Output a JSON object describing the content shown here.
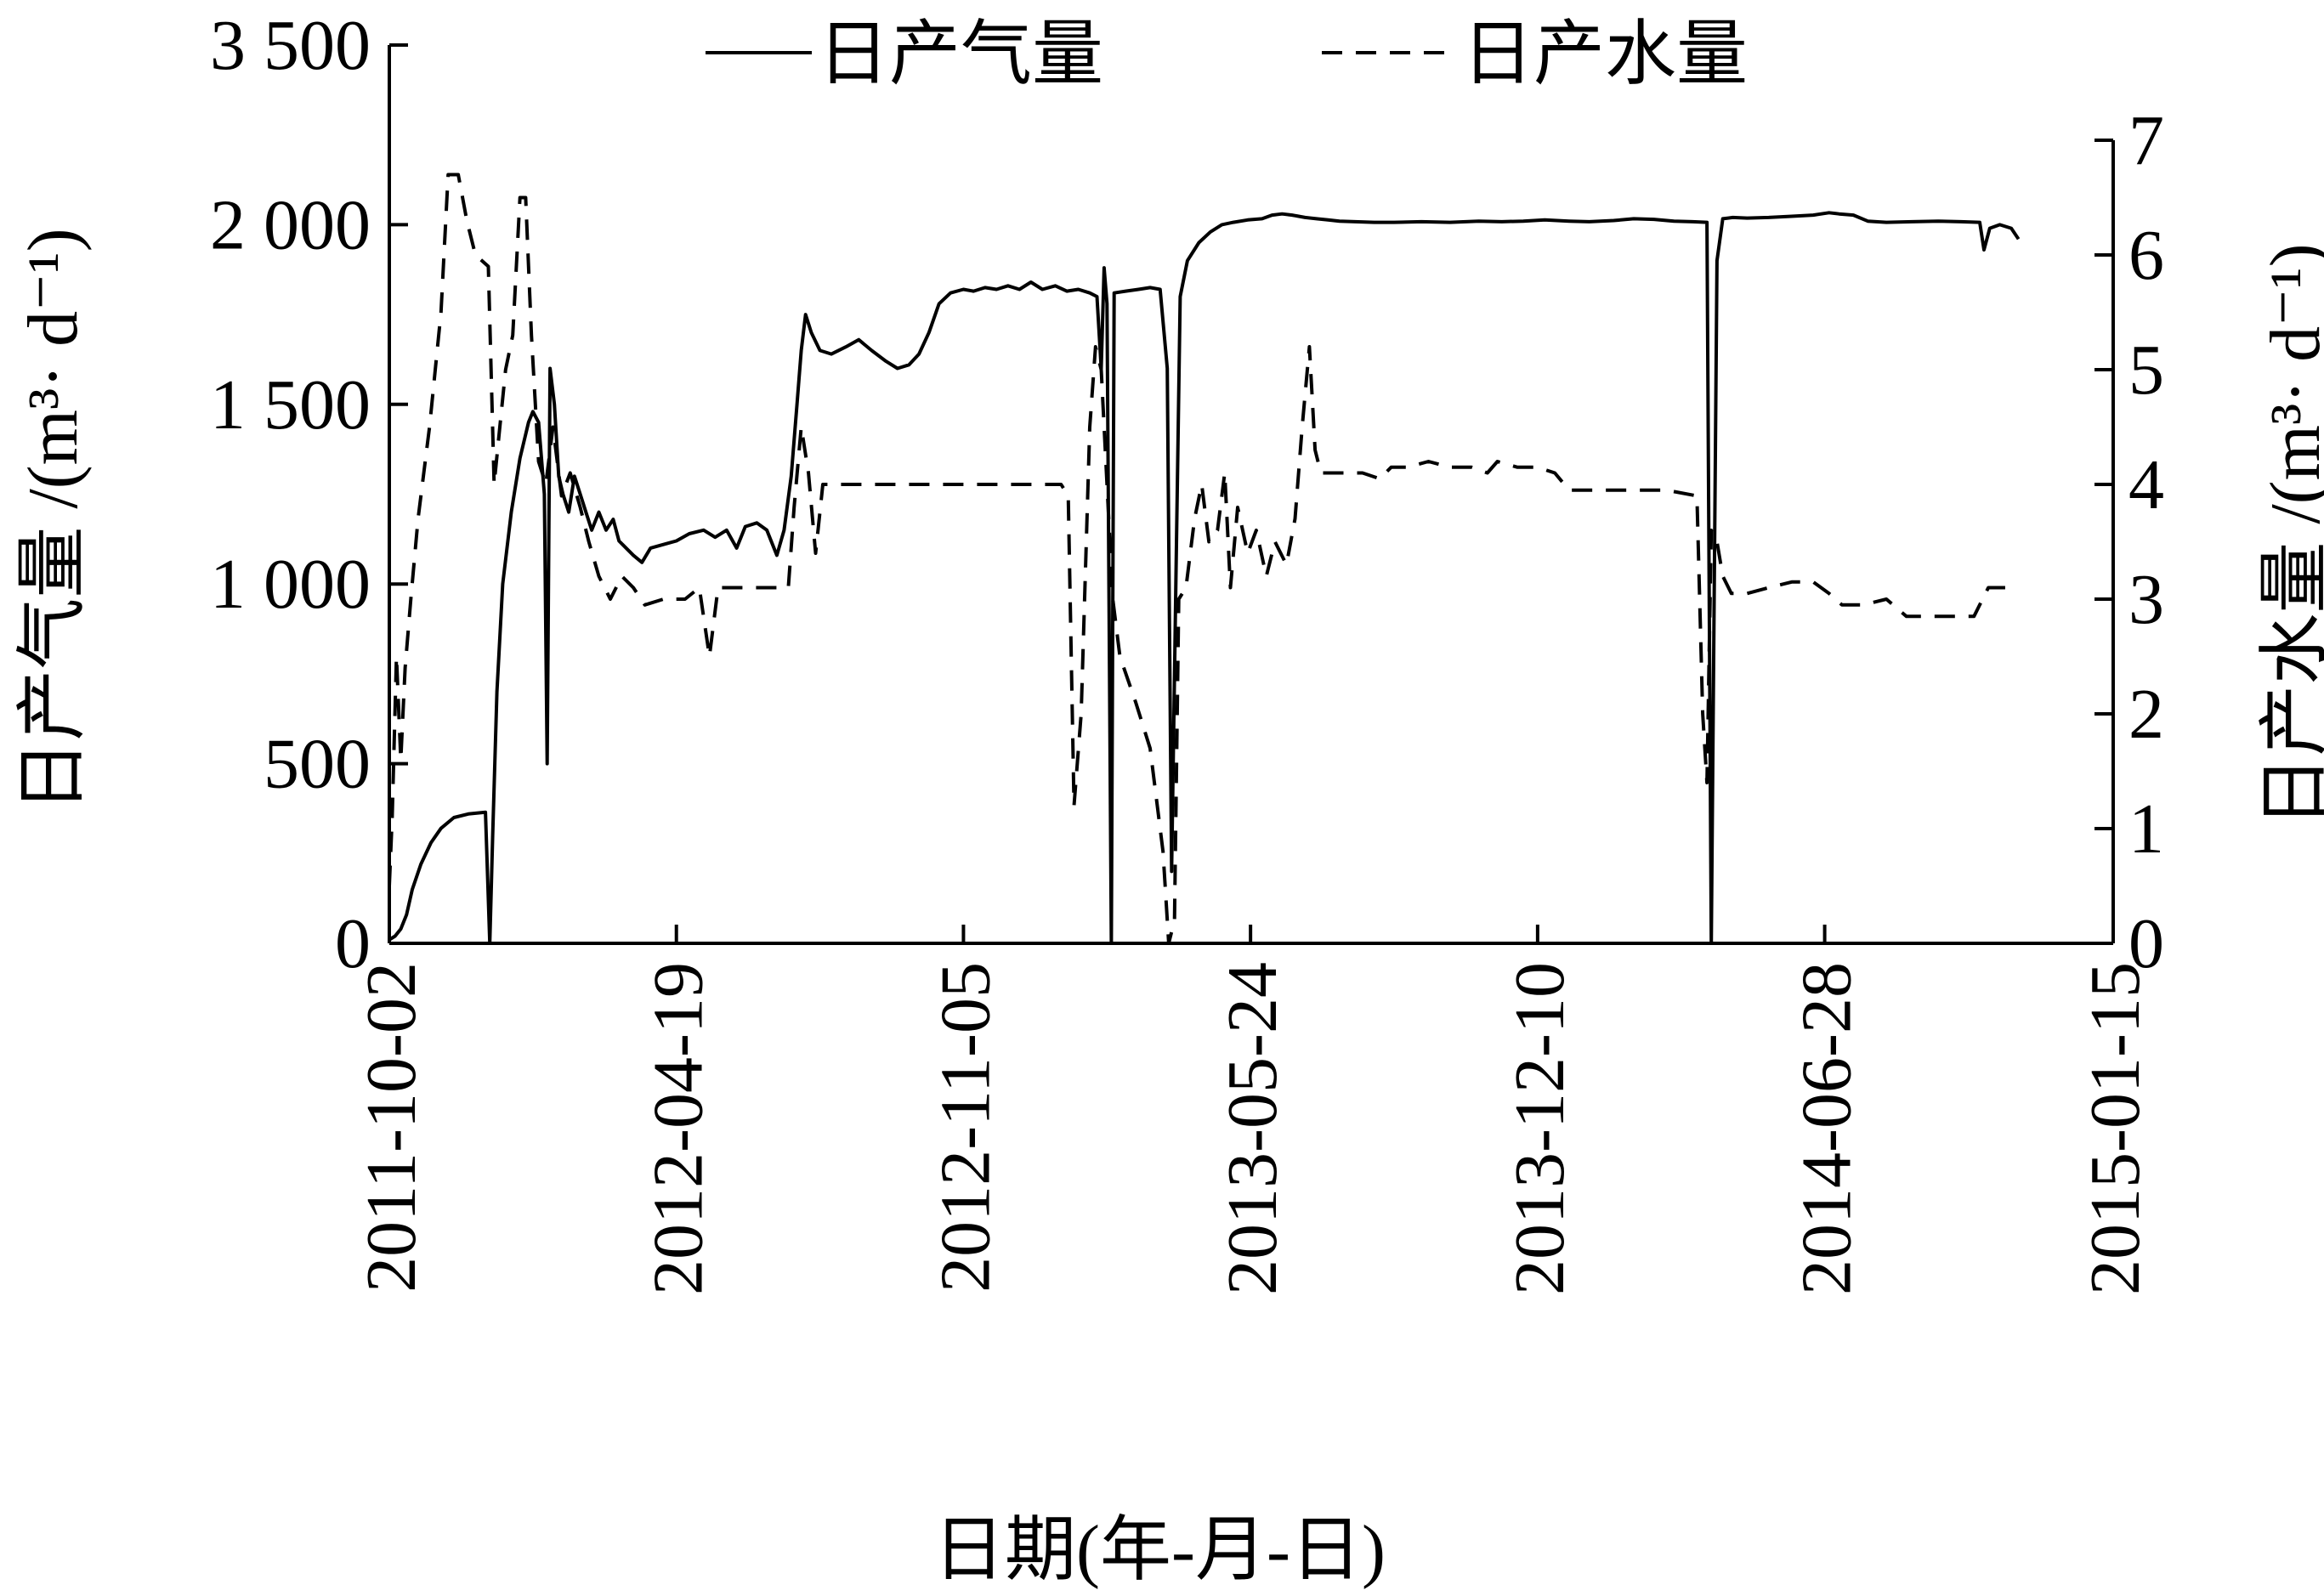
{
  "chart_data": {
    "type": "line",
    "xlabel": "日期(年-月-日)",
    "ylabel_left": "日产气量 /(m³· d⁻¹)",
    "ylabel_right": "日产水量 /(m³· d⁻¹)",
    "x_tick_labels": [
      "2011-10-02",
      "2012-04-19",
      "2012-11-05",
      "2013-05-24",
      "2013-12-10",
      "2014-06-28",
      "2015-01-15"
    ],
    "xlim": [
      "2011-10-02",
      "2015-01-15"
    ],
    "y_left_ticks": [
      "0",
      "500",
      "1 000",
      "1 500",
      "2 000",
      "3 500"
    ],
    "y_left_tick_values": [
      0,
      500,
      1000,
      1500,
      2000,
      3500
    ],
    "y_left_lim": [
      0,
      3500
    ],
    "y_left_axis_break": "between 2000 and 3500 the axis is compressed (the 3 500 tick sits where 2500 would be)",
    "y_right_ticks": [
      "0",
      "1",
      "2",
      "3",
      "4",
      "5",
      "6",
      "7"
    ],
    "y_right_lim": [
      0,
      7
    ],
    "legend": {
      "position": "top",
      "entries": [
        "日产气量",
        "日产水量"
      ]
    },
    "grid": false,
    "series": [
      {
        "name": "日产气量",
        "axis": "left",
        "style": "solid",
        "color": "#000000",
        "points": [
          [
            "2011-10-02",
            10
          ],
          [
            "2011-10-06",
            20
          ],
          [
            "2011-10-10",
            40
          ],
          [
            "2011-10-14",
            80
          ],
          [
            "2011-10-18",
            150
          ],
          [
            "2011-10-24",
            220
          ],
          [
            "2011-10-31",
            280
          ],
          [
            "2011-11-07",
            320
          ],
          [
            "2011-11-16",
            350
          ],
          [
            "2011-11-26",
            360
          ],
          [
            "2011-12-08",
            365
          ],
          [
            "2011-12-11",
            0
          ],
          [
            "2011-12-13",
            300
          ],
          [
            "2011-12-16",
            700
          ],
          [
            "2011-12-20",
            1000
          ],
          [
            "2011-12-26",
            1200
          ],
          [
            "2012-01-01",
            1350
          ],
          [
            "2012-01-07",
            1450
          ],
          [
            "2012-01-10",
            1480
          ],
          [
            "2012-01-14",
            1450
          ],
          [
            "2012-01-16",
            1350
          ],
          [
            "2012-01-18",
            1250
          ],
          [
            "2012-01-20",
            500
          ],
          [
            "2012-01-22",
            1600
          ],
          [
            "2012-01-25",
            1500
          ],
          [
            "2012-01-28",
            1300
          ],
          [
            "2012-01-31",
            1250
          ],
          [
            "2012-02-04",
            1200
          ],
          [
            "2012-02-08",
            1300
          ],
          [
            "2012-02-12",
            1250
          ],
          [
            "2012-02-16",
            1200
          ],
          [
            "2012-02-20",
            1150
          ],
          [
            "2012-02-25",
            1200
          ],
          [
            "2012-03-01",
            1150
          ],
          [
            "2012-03-06",
            1180
          ],
          [
            "2012-03-10",
            1120
          ],
          [
            "2012-03-15",
            1100
          ],
          [
            "2012-03-20",
            1080
          ],
          [
            "2012-03-26",
            1060
          ],
          [
            "2012-04-01",
            1100
          ],
          [
            "2012-04-10",
            1110
          ],
          [
            "2012-04-19",
            1120
          ],
          [
            "2012-04-28",
            1140
          ],
          [
            "2012-05-08",
            1150
          ],
          [
            "2012-05-16",
            1130
          ],
          [
            "2012-05-24",
            1150
          ],
          [
            "2012-05-31",
            1100
          ],
          [
            "2012-06-06",
            1160
          ],
          [
            "2012-06-14",
            1170
          ],
          [
            "2012-06-21",
            1150
          ],
          [
            "2012-06-28",
            1080
          ],
          [
            "2012-07-03",
            1150
          ],
          [
            "2012-07-08",
            1300
          ],
          [
            "2012-07-12",
            1500
          ],
          [
            "2012-07-15",
            1650
          ],
          [
            "2012-07-18",
            1750
          ],
          [
            "2012-07-22",
            1700
          ],
          [
            "2012-07-28",
            1650
          ],
          [
            "2012-08-05",
            1640
          ],
          [
            "2012-08-15",
            1660
          ],
          [
            "2012-08-24",
            1680
          ],
          [
            "2012-09-02",
            1650
          ],
          [
            "2012-09-12",
            1620
          ],
          [
            "2012-09-20",
            1600
          ],
          [
            "2012-09-28",
            1610
          ],
          [
            "2012-10-05",
            1640
          ],
          [
            "2012-10-12",
            1700
          ],
          [
            "2012-10-19",
            1780
          ],
          [
            "2012-10-27",
            1810
          ],
          [
            "2012-11-05",
            1820
          ],
          [
            "2012-11-12",
            1815
          ],
          [
            "2012-11-20",
            1825
          ],
          [
            "2012-11-28",
            1820
          ],
          [
            "2012-12-06",
            1830
          ],
          [
            "2012-12-14",
            1820
          ],
          [
            "2012-12-22",
            1840
          ],
          [
            "2012-12-30",
            1820
          ],
          [
            "2013-01-08",
            1830
          ],
          [
            "2013-01-16",
            1815
          ],
          [
            "2013-01-24",
            1820
          ],
          [
            "2013-02-01",
            1810
          ],
          [
            "2013-02-06",
            1800
          ],
          [
            "2013-02-09",
            1600
          ],
          [
            "2013-02-11",
            1880
          ],
          [
            "2013-02-13",
            1780
          ],
          [
            "2013-02-16",
            0
          ],
          [
            "2013-02-18",
            1810
          ],
          [
            "2013-02-26",
            1815
          ],
          [
            "2013-03-07",
            1820
          ],
          [
            "2013-03-15",
            1825
          ],
          [
            "2013-03-22",
            1820
          ],
          [
            "2013-03-27",
            1600
          ],
          [
            "2013-03-30",
            200
          ],
          [
            "2013-04-02",
            1000
          ],
          [
            "2013-04-05",
            1800
          ],
          [
            "2013-04-10",
            1900
          ],
          [
            "2013-04-18",
            1950
          ],
          [
            "2013-04-26",
            1980
          ],
          [
            "2013-05-04",
            2000
          ],
          [
            "2013-05-12",
            2020
          ],
          [
            "2013-05-22",
            2040
          ],
          [
            "2013-06-01",
            2050
          ],
          [
            "2013-06-08",
            2080
          ],
          [
            "2013-06-15",
            2090
          ],
          [
            "2013-06-22",
            2080
          ],
          [
            "2013-07-01",
            2060
          ],
          [
            "2013-07-09",
            2050
          ],
          [
            "2013-07-17",
            2040
          ],
          [
            "2013-07-25",
            2030
          ],
          [
            "2013-08-05",
            2025
          ],
          [
            "2013-08-18",
            2020
          ],
          [
            "2013-09-01",
            2020
          ],
          [
            "2013-09-20",
            2025
          ],
          [
            "2013-10-10",
            2020
          ],
          [
            "2013-10-30",
            2030
          ],
          [
            "2013-11-15",
            2025
          ],
          [
            "2013-11-30",
            2030
          ],
          [
            "2013-12-15",
            2040
          ],
          [
            "2014-01-01",
            2030
          ],
          [
            "2014-01-15",
            2025
          ],
          [
            "2014-02-01",
            2035
          ],
          [
            "2014-02-15",
            2050
          ],
          [
            "2014-03-01",
            2045
          ],
          [
            "2014-03-15",
            2030
          ],
          [
            "2014-03-28",
            2025
          ],
          [
            "2014-04-07",
            2020
          ],
          [
            "2014-04-10",
            0
          ],
          [
            "2014-04-14",
            1900
          ],
          [
            "2014-04-18",
            2050
          ],
          [
            "2014-04-25",
            2060
          ],
          [
            "2014-05-05",
            2055
          ],
          [
            "2014-05-20",
            2060
          ],
          [
            "2014-06-05",
            2070
          ],
          [
            "2014-06-20",
            2080
          ],
          [
            "2014-07-01",
            2100
          ],
          [
            "2014-07-08",
            2090
          ],
          [
            "2014-07-18",
            2080
          ],
          [
            "2014-07-28",
            2030
          ],
          [
            "2014-08-10",
            2020
          ],
          [
            "2014-08-28",
            2025
          ],
          [
            "2014-09-15",
            2030
          ],
          [
            "2014-10-01",
            2025
          ],
          [
            "2014-10-14",
            2020
          ],
          [
            "2014-10-17",
            1930
          ],
          [
            "2014-10-21",
            1990
          ],
          [
            "2014-10-28",
            2000
          ],
          [
            "2014-11-05",
            1990
          ],
          [
            "2014-11-10",
            1960
          ]
        ]
      },
      {
        "name": "日产水量",
        "axis": "right",
        "style": "dashed",
        "color": "#000000",
        "points": [
          [
            "2011-10-02",
            0.5
          ],
          [
            "2011-10-04",
            1.1
          ],
          [
            "2011-10-07",
            2.5
          ],
          [
            "2011-10-10",
            1.6
          ],
          [
            "2011-10-13",
            2.4
          ],
          [
            "2011-10-17",
            3.0
          ],
          [
            "2011-10-22",
            3.7
          ],
          [
            "2011-10-30",
            4.5
          ],
          [
            "2011-11-07",
            5.5
          ],
          [
            "2011-11-12",
            6.7
          ],
          [
            "2011-11-19",
            6.7
          ],
          [
            "2011-11-25",
            6.3
          ],
          [
            "2011-12-01",
            6.0
          ],
          [
            "2011-12-10",
            5.9
          ],
          [
            "2011-12-14",
            4.0
          ],
          [
            "2011-12-18",
            4.5
          ],
          [
            "2011-12-22",
            5.0
          ],
          [
            "2011-12-27",
            5.3
          ],
          [
            "2012-01-01",
            6.5
          ],
          [
            "2012-01-05",
            6.5
          ],
          [
            "2012-01-09",
            5.3
          ],
          [
            "2012-01-14",
            4.2
          ],
          [
            "2012-01-19",
            4.0
          ],
          [
            "2012-01-24",
            4.5
          ],
          [
            "2012-01-30",
            3.9
          ],
          [
            "2012-02-05",
            4.1
          ],
          [
            "2012-02-12",
            3.8
          ],
          [
            "2012-02-18",
            3.5
          ],
          [
            "2012-02-25",
            3.2
          ],
          [
            "2012-03-04",
            3.0
          ],
          [
            "2012-03-12",
            3.2
          ],
          [
            "2012-03-20",
            3.1
          ],
          [
            "2012-03-28",
            2.95
          ],
          [
            "2012-04-10",
            3.0
          ],
          [
            "2012-04-25",
            3.0
          ],
          [
            "2012-05-05",
            3.1
          ],
          [
            "2012-05-12",
            2.5
          ],
          [
            "2012-05-18",
            3.1
          ],
          [
            "2012-05-30",
            3.1
          ],
          [
            "2012-06-10",
            3.1
          ],
          [
            "2012-06-25",
            3.1
          ],
          [
            "2012-07-06",
            3.1
          ],
          [
            "2012-07-10",
            3.8
          ],
          [
            "2012-07-15",
            4.5
          ],
          [
            "2012-07-20",
            4.1
          ],
          [
            "2012-07-25",
            3.4
          ],
          [
            "2012-07-30",
            4.0
          ],
          [
            "2012-08-15",
            4.0
          ],
          [
            "2012-09-10",
            4.0
          ],
          [
            "2012-10-05",
            4.0
          ],
          [
            "2012-11-01",
            4.0
          ],
          [
            "2012-11-25",
            4.0
          ],
          [
            "2012-12-20",
            4.0
          ],
          [
            "2013-01-12",
            4.0
          ],
          [
            "2013-01-17",
            3.9
          ],
          [
            "2013-01-21",
            1.2
          ],
          [
            "2013-01-26",
            2.0
          ],
          [
            "2013-02-01",
            4.5
          ],
          [
            "2013-02-05",
            5.2
          ],
          [
            "2013-02-09",
            5.0
          ],
          [
            "2013-02-13",
            4.0
          ],
          [
            "2013-02-17",
            3.0
          ],
          [
            "2013-02-22",
            2.5
          ],
          [
            "2013-03-05",
            2.1
          ],
          [
            "2013-03-15",
            1.7
          ],
          [
            "2013-03-24",
            0.8
          ],
          [
            "2013-03-28",
            0.0
          ],
          [
            "2013-04-01",
            0.2
          ],
          [
            "2013-04-04",
            3.0
          ],
          [
            "2013-04-09",
            3.1
          ],
          [
            "2013-04-15",
            3.7
          ],
          [
            "2013-04-20",
            4.0
          ],
          [
            "2013-04-25",
            3.5
          ],
          [
            "2013-05-01",
            3.6
          ],
          [
            "2013-05-06",
            4.1
          ],
          [
            "2013-05-10",
            3.1
          ],
          [
            "2013-05-15",
            3.8
          ],
          [
            "2013-05-22",
            3.4
          ],
          [
            "2013-05-28",
            3.6
          ],
          [
            "2013-06-04",
            3.2
          ],
          [
            "2013-06-10",
            3.5
          ],
          [
            "2013-06-18",
            3.3
          ],
          [
            "2013-06-24",
            3.7
          ],
          [
            "2013-06-29",
            4.5
          ],
          [
            "2013-07-04",
            5.2
          ],
          [
            "2013-07-08",
            4.3
          ],
          [
            "2013-07-12",
            4.1
          ],
          [
            "2013-07-25",
            4.1
          ],
          [
            "2013-08-10",
            4.1
          ],
          [
            "2013-08-22",
            4.05
          ],
          [
            "2013-08-30",
            4.15
          ],
          [
            "2013-09-10",
            4.15
          ],
          [
            "2013-09-25",
            4.2
          ],
          [
            "2013-10-10",
            4.15
          ],
          [
            "2013-10-25",
            4.15
          ],
          [
            "2013-11-05",
            4.1
          ],
          [
            "2013-11-12",
            4.2
          ],
          [
            "2013-11-26",
            4.15
          ],
          [
            "2013-12-10",
            4.15
          ],
          [
            "2013-12-22",
            4.1
          ],
          [
            "2014-01-01",
            3.95
          ],
          [
            "2014-01-15",
            3.95
          ],
          [
            "2014-02-01",
            3.95
          ],
          [
            "2014-03-10",
            3.95
          ],
          [
            "2014-03-31",
            3.9
          ],
          [
            "2014-04-04",
            2.0
          ],
          [
            "2014-04-07",
            1.4
          ],
          [
            "2014-04-10",
            3.6
          ],
          [
            "2014-04-14",
            3.5
          ],
          [
            "2014-04-18",
            3.2
          ],
          [
            "2014-04-24",
            3.05
          ],
          [
            "2014-05-05",
            3.05
          ],
          [
            "2014-05-20",
            3.1
          ],
          [
            "2014-06-05",
            3.15
          ],
          [
            "2014-06-20",
            3.15
          ],
          [
            "2014-07-01",
            3.05
          ],
          [
            "2014-07-10",
            2.95
          ],
          [
            "2014-07-25",
            2.95
          ],
          [
            "2014-08-10",
            3.0
          ],
          [
            "2014-08-24",
            2.85
          ],
          [
            "2014-09-10",
            2.85
          ],
          [
            "2014-09-28",
            2.85
          ],
          [
            "2014-10-10",
            2.85
          ],
          [
            "2014-10-20",
            3.1
          ],
          [
            "2014-11-01",
            3.1
          ],
          [
            "2014-11-10",
            3.1
          ]
        ]
      }
    ]
  }
}
